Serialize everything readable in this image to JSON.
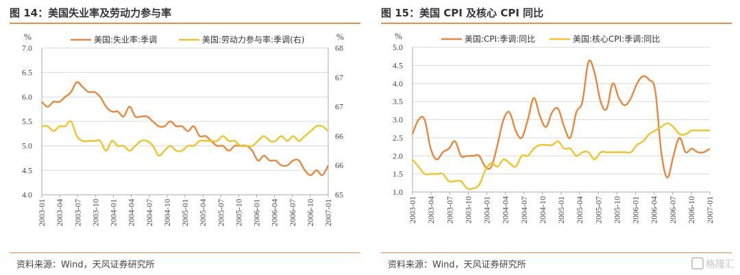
{
  "colors": {
    "orange": "#e8863a",
    "yellow": "#f2c322",
    "rule": "#f08c3a",
    "grid": "#d9d9d9",
    "axis": "#aaaaaa"
  },
  "left": {
    "title": "图 14：美国失业率及劳动力参与率",
    "source": "资料来源：Wind，天风证券研究所"
  },
  "right": {
    "title": "图 15：美国 CPI 及核心 CPI 同比",
    "source": "资料来源：Wind，天风证券研究所"
  },
  "watermark": "格隆汇",
  "chart_data": [
    {
      "type": "line",
      "x_ticks": [
        "2003-01",
        "2003-04",
        "2003-07",
        "2003-10",
        "2004-01",
        "2004-04",
        "2004-07",
        "2004-10",
        "2005-01",
        "2005-04",
        "2005-07",
        "2005-10",
        "2006-01",
        "2006-04",
        "2006-07",
        "2006-10",
        "2007-01"
      ],
      "x_count": 50,
      "ylabel_left": "%",
      "ylabel_right": "%",
      "ylim_left": [
        4.0,
        7.0
      ],
      "yticks_left": [
        "7.0",
        "6.5",
        "6.0",
        "5.5",
        "5.0",
        "4.5",
        "4.0"
      ],
      "ylim_right": [
        65,
        68
      ],
      "yticks_right": [
        "68",
        "67",
        "67",
        "66",
        "66",
        "65"
      ],
      "grid": true,
      "legend": "top",
      "series": [
        {
          "name": "美国:失业率:季调",
          "axis": "left",
          "color": "#e8863a",
          "values": [
            5.9,
            5.8,
            5.9,
            5.9,
            6.0,
            6.1,
            6.3,
            6.2,
            6.1,
            6.1,
            6.0,
            5.8,
            5.7,
            5.7,
            5.6,
            5.8,
            5.6,
            5.6,
            5.6,
            5.5,
            5.4,
            5.4,
            5.5,
            5.4,
            5.4,
            5.3,
            5.4,
            5.2,
            5.2,
            5.1,
            5.0,
            5.0,
            4.9,
            5.0,
            5.0,
            5.0,
            4.9,
            4.7,
            4.8,
            4.7,
            4.7,
            4.6,
            4.6,
            4.7,
            4.7,
            4.5,
            4.4,
            4.5,
            4.4,
            4.6
          ]
        },
        {
          "name": "美国:劳动力参与率:季调(右)",
          "axis": "right",
          "color": "#f2c322",
          "values": [
            66.4,
            66.4,
            66.3,
            66.4,
            66.4,
            66.5,
            66.2,
            66.1,
            66.1,
            66.1,
            66.1,
            65.9,
            66.1,
            66.0,
            66.0,
            65.9,
            66.0,
            66.1,
            66.1,
            66.0,
            65.8,
            65.9,
            66.0,
            65.9,
            65.9,
            66.0,
            66.0,
            66.1,
            66.1,
            66.1,
            66.1,
            66.2,
            66.1,
            66.1,
            66.0,
            66.0,
            66.0,
            66.1,
            66.2,
            66.1,
            66.1,
            66.2,
            66.1,
            66.2,
            66.1,
            66.2,
            66.3,
            66.4,
            66.4,
            66.3
          ]
        }
      ]
    },
    {
      "type": "line",
      "x_ticks": [
        "2003-01",
        "2003-04",
        "2003-07",
        "2003-10",
        "2004-01",
        "2004-04",
        "2004-07",
        "2004-10",
        "2005-01",
        "2005-04",
        "2005-07",
        "2005-10",
        "2006-01",
        "2006-04",
        "2006-07",
        "2006-10",
        "2007-01"
      ],
      "x_count": 50,
      "ylabel": "%",
      "ylim": [
        1.0,
        5.0
      ],
      "yticks": [
        "5.0",
        "4.5",
        "4.0",
        "3.5",
        "3.0",
        "2.5",
        "2.0",
        "1.5",
        "1.0"
      ],
      "grid": true,
      "legend": "top",
      "series": [
        {
          "name": "美国:CPI:季调:同比",
          "color": "#e8863a",
          "values": [
            2.6,
            3.0,
            3.0,
            2.2,
            1.9,
            2.1,
            2.2,
            2.4,
            2.0,
            2.0,
            2.0,
            2.0,
            1.7,
            1.7,
            2.3,
            3.0,
            3.2,
            2.7,
            2.5,
            3.0,
            3.6,
            3.1,
            2.8,
            3.2,
            3.3,
            2.8,
            2.5,
            3.2,
            3.5,
            4.6,
            4.3,
            3.5,
            3.3,
            4.0,
            3.6,
            3.4,
            3.6,
            4.0,
            4.2,
            4.1,
            3.8,
            2.1,
            1.4,
            2.0,
            2.5,
            2.1,
            2.2,
            2.1,
            2.1,
            2.2
          ]
        },
        {
          "name": "美国:核心CPI:季调:同比",
          "color": "#f2c322",
          "values": [
            1.9,
            1.7,
            1.5,
            1.5,
            1.5,
            1.5,
            1.3,
            1.3,
            1.3,
            1.1,
            1.1,
            1.2,
            1.6,
            1.8,
            1.7,
            1.9,
            1.8,
            1.7,
            2.0,
            2.0,
            2.2,
            2.3,
            2.3,
            2.3,
            2.4,
            2.2,
            2.2,
            2.0,
            2.1,
            2.1,
            1.9,
            2.1,
            2.1,
            2.1,
            2.1,
            2.1,
            2.1,
            2.3,
            2.4,
            2.6,
            2.7,
            2.8,
            2.9,
            2.8,
            2.6,
            2.6,
            2.7,
            2.7,
            2.7,
            2.7
          ]
        }
      ]
    }
  ]
}
